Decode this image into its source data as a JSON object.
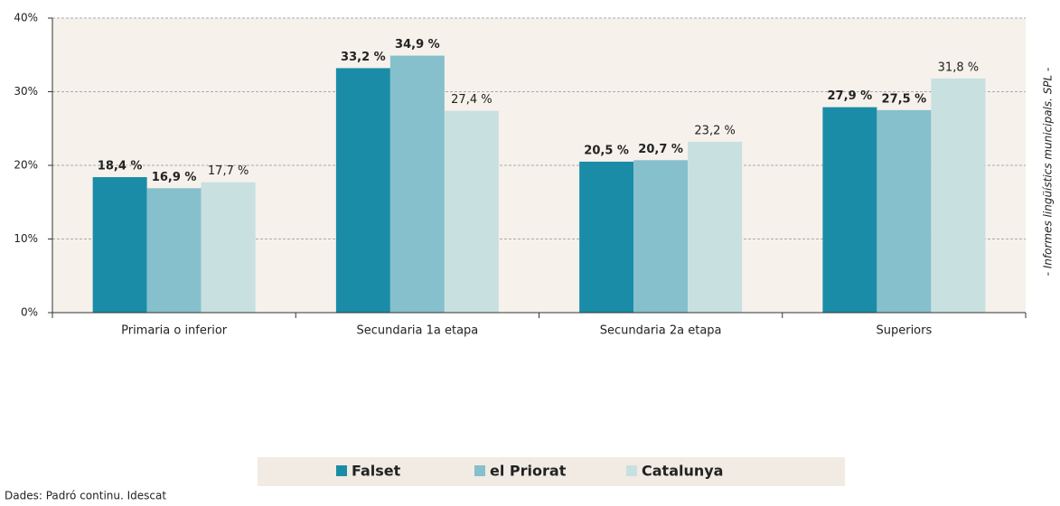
{
  "chart_data": {
    "type": "bar",
    "categories": [
      "Primaria o inferior",
      "Secundaria 1a etapa",
      "Secundaria 2a etapa",
      "Superiors"
    ],
    "series": [
      {
        "name": "Falset",
        "color": "#1a8ca8",
        "values": [
          18.4,
          33.2,
          20.5,
          27.9
        ],
        "value_labels": [
          "18,4 %",
          "33,2 %",
          "20,5 %",
          "27,9 %"
        ]
      },
      {
        "name": "el Priorat",
        "color": "#86c0cc",
        "values": [
          16.9,
          34.9,
          20.7,
          27.5
        ],
        "value_labels": [
          "16,9 %",
          "34,9 %",
          "20,7 %",
          "27,5 %"
        ]
      },
      {
        "name": "Catalunya",
        "color": "#c8e0e0",
        "values": [
          17.7,
          27.4,
          23.2,
          31.8
        ],
        "value_labels": [
          "17,7 %",
          "27,4 %",
          "23,2 %",
          "31,8 %"
        ]
      }
    ],
    "ylim": [
      0,
      40
    ],
    "yticks": [
      {
        "value": 0,
        "label": "0%"
      },
      {
        "value": 10,
        "label": "10%"
      },
      {
        "value": 20,
        "label": "20%"
      },
      {
        "value": 30,
        "label": "30%"
      },
      {
        "value": 40,
        "label": "40%"
      }
    ],
    "grid": true,
    "legend": "bottom",
    "source": "Dades: Padró continu. Idescat",
    "side_note": "- Informes lingüístics municipals. SPL -"
  }
}
